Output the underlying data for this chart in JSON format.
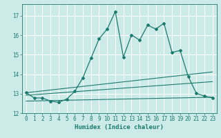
{
  "xlabel": "Humidex (Indice chaleur)",
  "background_color": "#cceae8",
  "line_color": "#1a7a6e",
  "grid_color": "#ffffff",
  "xlim": [
    -0.5,
    23.5
  ],
  "ylim": [
    12,
    17.6
  ],
  "yticks": [
    12,
    13,
    14,
    15,
    16,
    17
  ],
  "xticks": [
    0,
    1,
    2,
    3,
    4,
    5,
    6,
    7,
    8,
    9,
    10,
    11,
    12,
    13,
    14,
    15,
    16,
    17,
    18,
    19,
    20,
    21,
    22,
    23
  ],
  "main_line_x": [
    0,
    1,
    2,
    3,
    4,
    5,
    6,
    7,
    8,
    9,
    10,
    11,
    12,
    13,
    14,
    15,
    16,
    17,
    18,
    19,
    20,
    21,
    22,
    23
  ],
  "main_line_y": [
    13.05,
    12.78,
    12.78,
    12.62,
    12.56,
    12.72,
    13.12,
    13.82,
    14.82,
    15.82,
    16.32,
    17.22,
    14.88,
    16.02,
    15.75,
    16.52,
    16.32,
    16.62,
    15.12,
    15.22,
    13.88,
    13.02,
    12.88,
    12.78
  ],
  "lower_line_x": [
    0,
    23
  ],
  "lower_line_y": [
    12.62,
    12.82
  ],
  "mid_line_x": [
    0,
    23
  ],
  "mid_line_y": [
    12.92,
    13.62
  ],
  "upper_line_x": [
    0,
    23
  ],
  "upper_line_y": [
    13.05,
    14.12
  ]
}
